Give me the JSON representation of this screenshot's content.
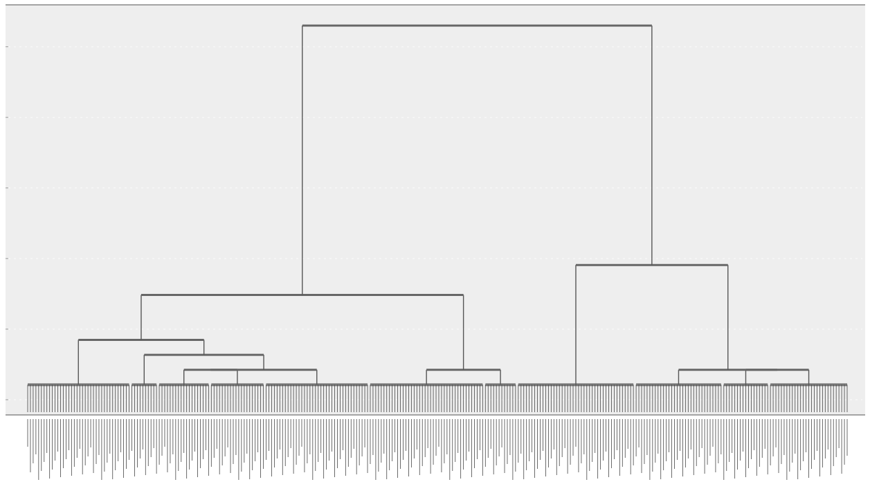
{
  "chart_data": {
    "type": "dendrogram",
    "title": "",
    "xlabel": "",
    "ylabel": "",
    "y_ticks": [
      0,
      1,
      2,
      3,
      4,
      5
    ],
    "ylim": [
      0,
      5.1
    ],
    "grid": true,
    "leaf_count": 300,
    "leaf_labels_legible": false,
    "clusters": [
      {
        "id": "L1",
        "leaf_start": 0,
        "leaf_end": 37,
        "height": 0.2
      },
      {
        "id": "L2",
        "leaf_start": 38,
        "leaf_end": 47,
        "height": 0.2
      },
      {
        "id": "L3",
        "leaf_start": 48,
        "leaf_end": 66,
        "height": 0.2
      },
      {
        "id": "L4",
        "leaf_start": 67,
        "leaf_end": 86,
        "height": 0.2
      },
      {
        "id": "L5",
        "leaf_start": 87,
        "leaf_end": 124,
        "height": 0.2
      },
      {
        "id": "L6",
        "leaf_start": 125,
        "leaf_end": 166,
        "height": 0.2
      },
      {
        "id": "L7",
        "leaf_start": 167,
        "leaf_end": 178,
        "height": 0.2
      },
      {
        "id": "L8",
        "leaf_start": 179,
        "leaf_end": 221,
        "height": 0.2
      },
      {
        "id": "L9",
        "leaf_start": 222,
        "leaf_end": 253,
        "height": 0.2
      },
      {
        "id": "L10",
        "leaf_start": 254,
        "leaf_end": 270,
        "height": 0.2
      },
      {
        "id": "L11",
        "leaf_start": 271,
        "leaf_end": 299,
        "height": 0.2
      }
    ],
    "merges": [
      {
        "id": "M1",
        "left": "L3",
        "right": "L4",
        "height": 0.4
      },
      {
        "id": "M2",
        "left": "M1",
        "right": "L5",
        "height": 0.4
      },
      {
        "id": "M3",
        "left": "L6",
        "right": "L7",
        "height": 0.4
      },
      {
        "id": "M4",
        "left": "L10",
        "right": "L11",
        "height": 0.4
      },
      {
        "id": "M5",
        "left": "L2",
        "right": "M2",
        "height": 0.6
      },
      {
        "id": "M6",
        "left": "L1",
        "right": "M5",
        "height": 0.8
      },
      {
        "id": "M7",
        "left": "M6",
        "right": "M3",
        "height": 1.4
      },
      {
        "id": "M8",
        "left": "L9",
        "right": "M4",
        "height": 0.4
      },
      {
        "id": "M9",
        "left": "L8",
        "right": "M8",
        "height": 1.8
      },
      {
        "id": "M10",
        "left": "M7",
        "right": "M9",
        "height": 5.0
      }
    ]
  }
}
